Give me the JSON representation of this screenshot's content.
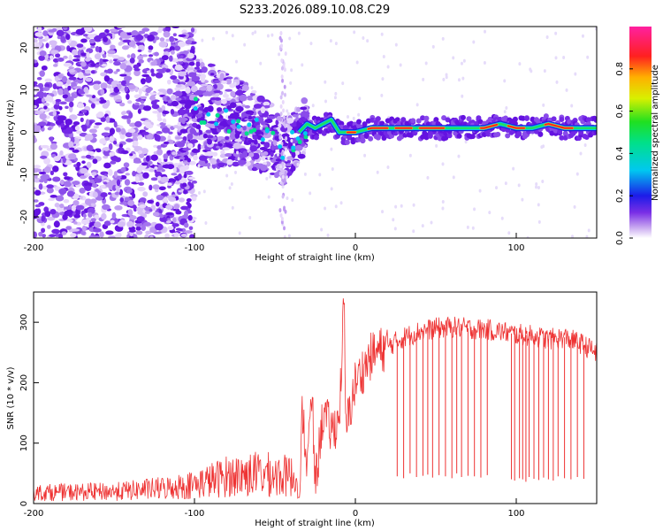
{
  "figure_title": "S233.2026.089.10.08.C29",
  "chart_data": [
    {
      "type": "heatmap",
      "title": "S233.2026.089.10.08.C29",
      "xlabel": "Height of straight line (km)",
      "ylabel": "Frequency (Hz)",
      "xlim": [
        -200,
        150
      ],
      "ylim": [
        -25,
        25
      ],
      "x_ticks": [
        "-200",
        "-100",
        "0",
        "100"
      ],
      "y_ticks": [
        "20",
        "10",
        "0",
        "-10",
        "-20"
      ],
      "colorbar": {
        "label": "Normalized spectral amplitude",
        "range": [
          0,
          1
        ],
        "ticks": [
          "0.0",
          "0.2",
          "0.4",
          "0.6",
          "0.8"
        ]
      },
      "ridge": {
        "description": "coherent signal ridge",
        "x": [
          -110,
          -100,
          -90,
          -80,
          -70,
          -60,
          -50,
          -45,
          -40,
          -35,
          -30,
          -25,
          -20,
          -15,
          -10,
          -5,
          0,
          10,
          20,
          40,
          60,
          80,
          90,
          100,
          110,
          120,
          130,
          140,
          150
        ],
        "y": [
          6,
          5,
          4,
          3,
          2,
          0,
          -2,
          -5,
          -3,
          0,
          2,
          1,
          2,
          3,
          0,
          0,
          0,
          1,
          1,
          1,
          1,
          1,
          2,
          1,
          1,
          2,
          1,
          1,
          1
        ]
      }
    },
    {
      "type": "line",
      "xlabel": "Height of straight line (km)",
      "ylabel": "SNR (10 * v/v)",
      "xlim": [
        -200,
        150
      ],
      "ylim": [
        0,
        350
      ],
      "x_ticks": [
        "-200",
        "-100",
        "0",
        "100"
      ],
      "y_ticks": [
        "0",
        "100",
        "200",
        "300"
      ],
      "series": [
        {
          "name": "SNR",
          "color": "#ee3333",
          "x": [
            -200,
            -150,
            -120,
            -100,
            -80,
            -60,
            -40,
            -34,
            -33,
            -30,
            -27,
            -25,
            -20,
            -15,
            -10,
            -7,
            -6,
            0,
            10,
            20,
            30,
            40,
            50,
            60,
            70,
            80,
            90,
            100,
            110,
            120,
            130,
            140,
            150
          ],
          "y": [
            20,
            22,
            28,
            35,
            50,
            55,
            50,
            40,
            160,
            60,
            180,
            30,
            150,
            120,
            140,
            340,
            120,
            200,
            245,
            260,
            275,
            285,
            290,
            292,
            290,
            288,
            285,
            280,
            278,
            272,
            275,
            265,
            250
          ]
        }
      ],
      "dropouts": {
        "x": [
          26,
          30,
          34,
          38,
          42,
          45,
          48,
          52,
          56,
          60,
          63,
          66,
          70,
          74,
          78,
          82,
          97,
          99,
          102,
          104,
          106,
          108,
          111,
          114,
          117,
          120,
          123,
          126,
          130,
          134,
          138,
          142
        ],
        "y": [
          45,
          42,
          50,
          44,
          46,
          48,
          43,
          47,
          45,
          42,
          50,
          44,
          46,
          45,
          43,
          47,
          40,
          38,
          42,
          40,
          36,
          44,
          41,
          39,
          43,
          40,
          38,
          45,
          42,
          40,
          44,
          41
        ]
      }
    }
  ]
}
